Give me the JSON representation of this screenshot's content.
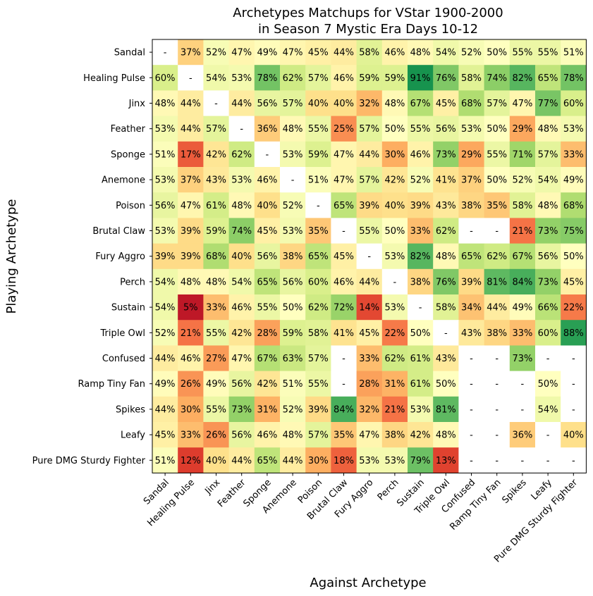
{
  "chart_data": {
    "type": "heatmap",
    "title": "Archetypes Matchups for VStar 1900-2000",
    "subtitle": "in Season 7 Mystic Era Days 10-12",
    "xlabel": "Against Archetype",
    "ylabel": "Playing Archetype",
    "rows": [
      "Sandal",
      "Healing Pulse",
      "Jinx",
      "Feather",
      "Sponge",
      "Anemone",
      "Poison",
      "Brutal Claw",
      "Fury Aggro",
      "Perch",
      "Sustain",
      "Triple Owl",
      "Confused",
      "Ramp Tiny Fan",
      "Spikes",
      "Leafy",
      "Pure DMG Sturdy Fighter"
    ],
    "columns": [
      "Sandal",
      "Healing Pulse",
      "Jinx",
      "Feather",
      "Sponge",
      "Anemone",
      "Poison",
      "Brutal Claw",
      "Fury Aggro",
      "Perch",
      "Sustain",
      "Triple Owl",
      "Confused",
      "Ramp Tiny Fan",
      "Spikes",
      "Leafy",
      "Pure DMG Sturdy Fighter"
    ],
    "values": [
      [
        null,
        37,
        52,
        47,
        49,
        47,
        45,
        44,
        58,
        46,
        48,
        54,
        52,
        50,
        55,
        55,
        51
      ],
      [
        60,
        null,
        54,
        53,
        78,
        62,
        57,
        46,
        59,
        59,
        91,
        76,
        58,
        74,
        82,
        65,
        78
      ],
      [
        48,
        44,
        null,
        44,
        56,
        57,
        40,
        40,
        32,
        48,
        67,
        45,
        68,
        57,
        47,
        77,
        60
      ],
      [
        53,
        44,
        57,
        null,
        36,
        48,
        55,
        25,
        57,
        50,
        55,
        56,
        53,
        50,
        29,
        48,
        53
      ],
      [
        51,
        17,
        42,
        62,
        null,
        53,
        59,
        47,
        44,
        30,
        46,
        73,
        29,
        55,
        71,
        57,
        33
      ],
      [
        53,
        37,
        43,
        53,
        46,
        null,
        51,
        47,
        57,
        42,
        52,
        41,
        37,
        50,
        52,
        54,
        49
      ],
      [
        56,
        47,
        61,
        48,
        40,
        52,
        null,
        65,
        39,
        40,
        39,
        43,
        38,
        35,
        58,
        48,
        68
      ],
      [
        53,
        39,
        59,
        74,
        45,
        53,
        35,
        null,
        55,
        50,
        33,
        62,
        null,
        null,
        21,
        73,
        75
      ],
      [
        39,
        39,
        68,
        40,
        56,
        38,
        65,
        45,
        null,
        53,
        82,
        48,
        65,
        62,
        67,
        56,
        50
      ],
      [
        54,
        48,
        48,
        54,
        65,
        56,
        60,
        46,
        44,
        null,
        38,
        76,
        39,
        81,
        84,
        73,
        45
      ],
      [
        54,
        5,
        33,
        46,
        55,
        50,
        62,
        72,
        14,
        53,
        null,
        58,
        34,
        44,
        49,
        66,
        22
      ],
      [
        52,
        21,
        55,
        42,
        28,
        59,
        58,
        41,
        45,
        22,
        50,
        null,
        43,
        38,
        33,
        60,
        88
      ],
      [
        44,
        46,
        27,
        47,
        67,
        63,
        57,
        null,
        33,
        62,
        61,
        43,
        null,
        null,
        73,
        null,
        null
      ],
      [
        49,
        26,
        49,
        56,
        42,
        51,
        55,
        null,
        28,
        31,
        61,
        50,
        null,
        null,
        null,
        50,
        null
      ],
      [
        44,
        30,
        55,
        73,
        31,
        52,
        39,
        84,
        32,
        21,
        53,
        81,
        null,
        null,
        null,
        54,
        null
      ],
      [
        45,
        33,
        26,
        56,
        46,
        48,
        57,
        35,
        47,
        38,
        42,
        48,
        null,
        null,
        36,
        null,
        40
      ],
      [
        51,
        12,
        40,
        44,
        65,
        44,
        30,
        18,
        53,
        53,
        79,
        13,
        null,
        null,
        null,
        null,
        null
      ]
    ],
    "missing_label": "-",
    "value_suffix": "%",
    "colormap": "RdYlGn",
    "vmin": 0,
    "vmax": 100,
    "missing_color": "#ffffff",
    "grid": false,
    "colorbar": false
  }
}
